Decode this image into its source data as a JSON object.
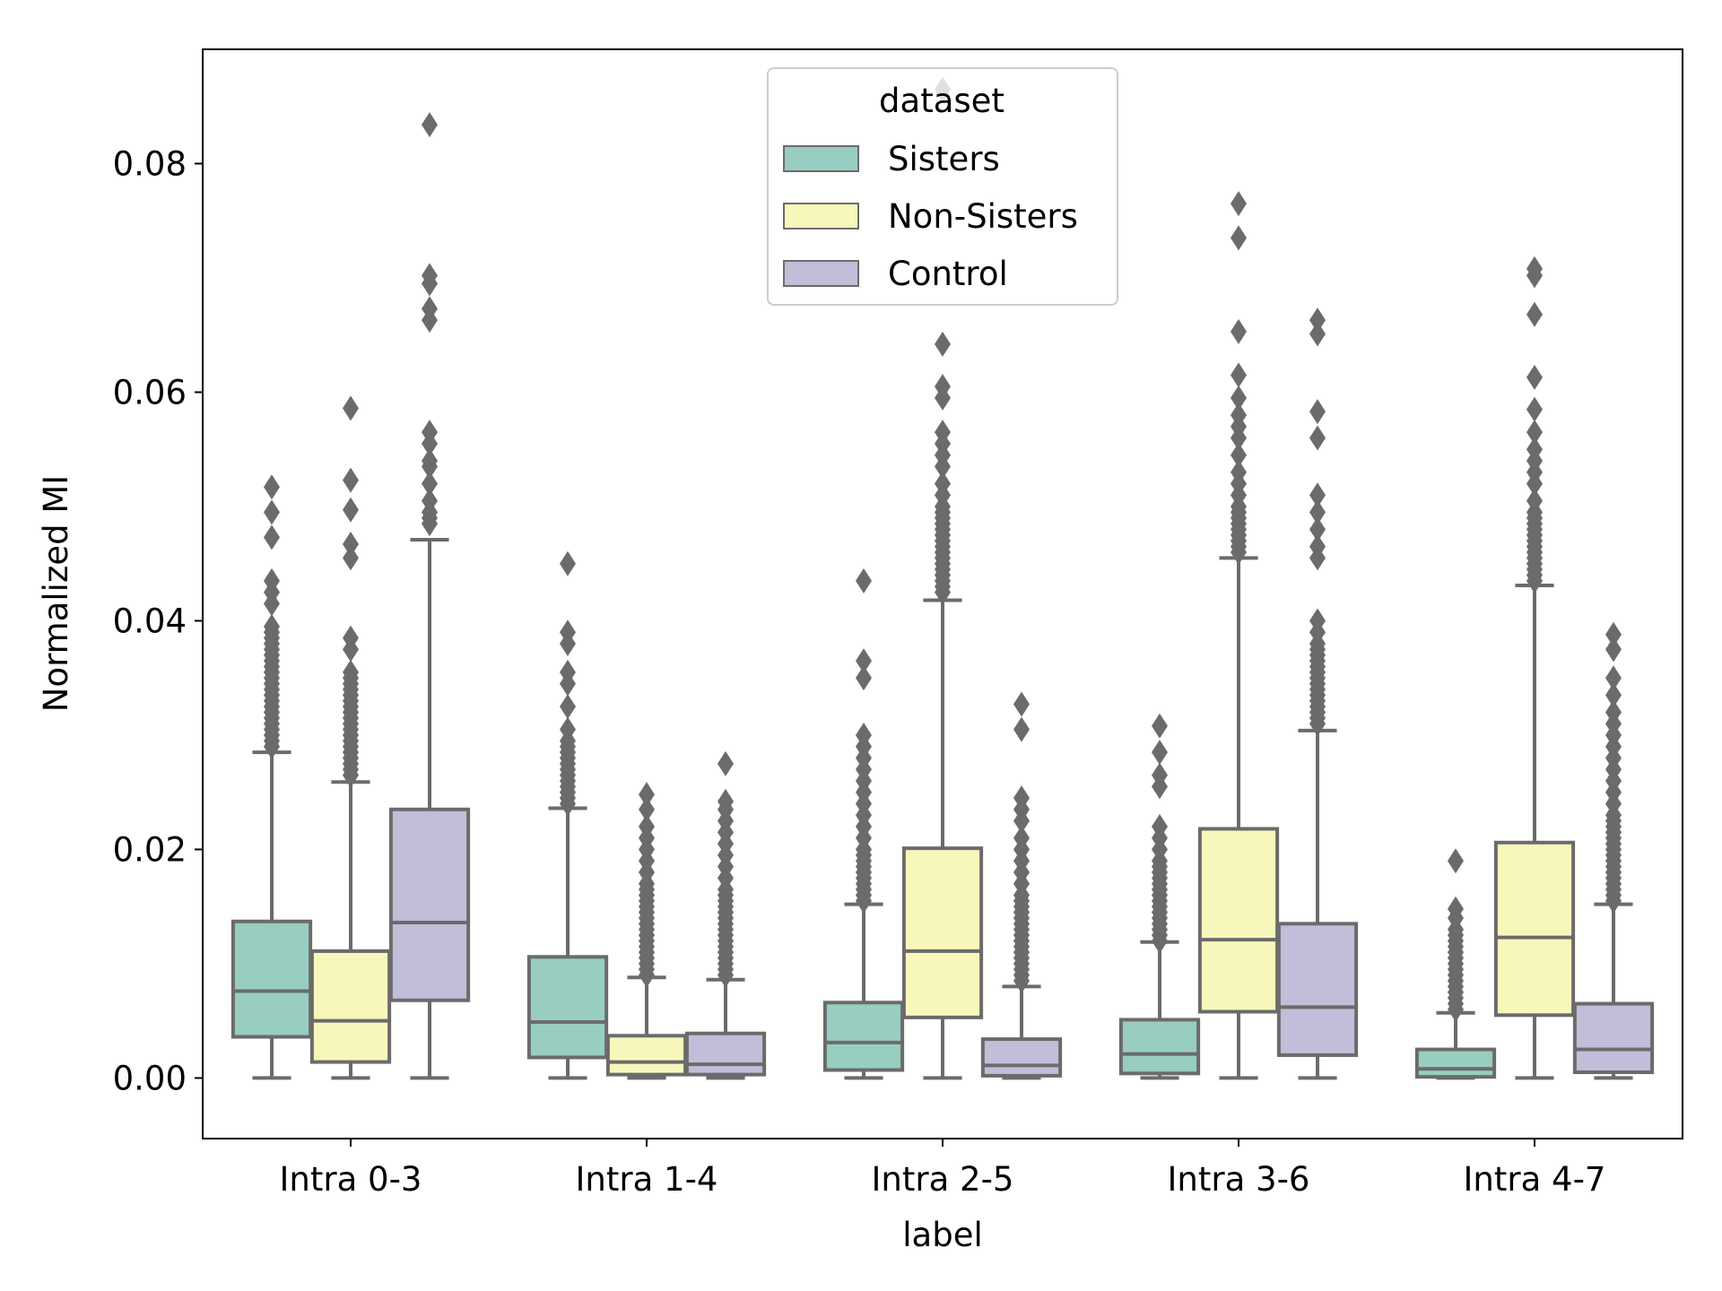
{
  "chart_data": {
    "type": "box",
    "xlabel": "label",
    "ylabel": "Normalized MI",
    "ylim": [
      -0.0053,
      0.09
    ],
    "yticks": [
      "0.00",
      "0.02",
      "0.04",
      "0.06",
      "0.08"
    ],
    "ytick_values": [
      0,
      0.02,
      0.04,
      0.06,
      0.08
    ],
    "categories": [
      "Intra 0-3",
      "Intra 1-4",
      "Intra 2-5",
      "Intra 3-6",
      "Intra 4-7"
    ],
    "grid": false,
    "legend": {
      "title": "dataset",
      "placement": "top-center"
    },
    "series": [
      {
        "name": "Sisters",
        "color": "#98cdc2",
        "boxes": [
          {
            "min": 0,
            "q1": 0.0036,
            "median": 0.0076,
            "q3": 0.0137,
            "max": 0.0285,
            "outliers": [
              0.029,
              0.0295,
              0.03,
              0.0305,
              0.031,
              0.0315,
              0.032,
              0.0325,
              0.033,
              0.0335,
              0.034,
              0.0345,
              0.035,
              0.0355,
              0.036,
              0.0365,
              0.037,
              0.0375,
              0.038,
              0.0385,
              0.039,
              0.0395,
              0.0415,
              0.0425,
              0.0435,
              0.0473,
              0.0495,
              0.0517
            ]
          },
          {
            "min": 0,
            "q1": 0.0018,
            "median": 0.0049,
            "q3": 0.0106,
            "max": 0.0236,
            "outliers": [
              0.024,
              0.0245,
              0.025,
              0.0255,
              0.026,
              0.0265,
              0.027,
              0.0275,
              0.028,
              0.0285,
              0.029,
              0.0295,
              0.0305,
              0.0325,
              0.0345,
              0.0355,
              0.038,
              0.039,
              0.045
            ]
          },
          {
            "min": 0,
            "q1": 0.0007,
            "median": 0.0031,
            "q3": 0.0066,
            "max": 0.0152,
            "outliers": [
              0.0155,
              0.016,
              0.0165,
              0.017,
              0.0175,
              0.018,
              0.0185,
              0.019,
              0.0195,
              0.02,
              0.021,
              0.022,
              0.023,
              0.024,
              0.025,
              0.026,
              0.027,
              0.028,
              0.029,
              0.03,
              0.035,
              0.0365,
              0.0435
            ]
          },
          {
            "min": 0,
            "q1": 0.0004,
            "median": 0.0021,
            "q3": 0.0051,
            "max": 0.0119,
            "outliers": [
              0.012,
              0.0125,
              0.013,
              0.0135,
              0.014,
              0.0145,
              0.015,
              0.0155,
              0.016,
              0.0165,
              0.017,
              0.0175,
              0.018,
              0.0185,
              0.019,
              0.02,
              0.021,
              0.022,
              0.0255,
              0.0265,
              0.0285,
              0.0308
            ]
          },
          {
            "min": 0,
            "q1": 0.0001,
            "median": 0.0008,
            "q3": 0.0025,
            "max": 0.0057,
            "outliers": [
              0.006,
              0.0065,
              0.007,
              0.0075,
              0.008,
              0.0085,
              0.009,
              0.0095,
              0.01,
              0.0105,
              0.011,
              0.0115,
              0.012,
              0.0125,
              0.013,
              0.014,
              0.0148,
              0.019
            ]
          }
        ]
      },
      {
        "name": "Non-Sisters",
        "color": "#f7f7bb",
        "boxes": [
          {
            "min": 0,
            "q1": 0.0014,
            "median": 0.005,
            "q3": 0.0111,
            "max": 0.0259,
            "outliers": [
              0.0265,
              0.027,
              0.0275,
              0.028,
              0.0285,
              0.029,
              0.0295,
              0.03,
              0.0305,
              0.031,
              0.0315,
              0.032,
              0.0325,
              0.033,
              0.0335,
              0.034,
              0.0345,
              0.035,
              0.0355,
              0.0375,
              0.0385,
              0.0455,
              0.0467,
              0.0497,
              0.0523,
              0.0586
            ]
          },
          {
            "min": 0,
            "q1": 0.0003,
            "median": 0.0014,
            "q3": 0.0037,
            "max": 0.0088,
            "outliers": [
              0.009,
              0.0095,
              0.01,
              0.0105,
              0.011,
              0.0115,
              0.012,
              0.0125,
              0.013,
              0.0135,
              0.014,
              0.0145,
              0.015,
              0.0155,
              0.016,
              0.0165,
              0.017,
              0.018,
              0.019,
              0.02,
              0.021,
              0.022,
              0.0235,
              0.0248
            ]
          },
          {
            "min": 0,
            "q1": 0.0053,
            "median": 0.0111,
            "q3": 0.0201,
            "max": 0.0418,
            "outliers": [
              0.0425,
              0.043,
              0.0435,
              0.044,
              0.0445,
              0.045,
              0.0455,
              0.046,
              0.0465,
              0.047,
              0.0475,
              0.048,
              0.0485,
              0.049,
              0.0495,
              0.05,
              0.051,
              0.052,
              0.0535,
              0.0545,
              0.0555,
              0.0565,
              0.0595,
              0.0605,
              0.0642,
              0.0865
            ]
          },
          {
            "min": 0,
            "q1": 0.0058,
            "median": 0.0121,
            "q3": 0.0218,
            "max": 0.0455,
            "outliers": [
              0.046,
              0.0465,
              0.047,
              0.0475,
              0.048,
              0.0485,
              0.049,
              0.0495,
              0.05,
              0.051,
              0.052,
              0.053,
              0.0545,
              0.056,
              0.057,
              0.058,
              0.0595,
              0.0615,
              0.0653,
              0.0735,
              0.0765
            ]
          },
          {
            "min": 0,
            "q1": 0.0055,
            "median": 0.0123,
            "q3": 0.0206,
            "max": 0.0431,
            "outliers": [
              0.0435,
              0.044,
              0.0445,
              0.045,
              0.0455,
              0.046,
              0.0465,
              0.047,
              0.0475,
              0.048,
              0.0485,
              0.049,
              0.0495,
              0.0505,
              0.052,
              0.053,
              0.054,
              0.055,
              0.0565,
              0.0585,
              0.0613,
              0.0668,
              0.0702,
              0.0708
            ]
          }
        ]
      },
      {
        "name": "Control",
        "color": "#c1bed9",
        "boxes": [
          {
            "min": 0,
            "q1": 0.0068,
            "median": 0.0136,
            "q3": 0.0235,
            "max": 0.0471,
            "outliers": [
              0.0485,
              0.049,
              0.0495,
              0.0505,
              0.052,
              0.0535,
              0.054,
              0.0555,
              0.0565,
              0.0663,
              0.0673,
              0.0695,
              0.0702,
              0.0834
            ]
          },
          {
            "min": 0,
            "q1": 0.0003,
            "median": 0.0012,
            "q3": 0.0039,
            "max": 0.0086,
            "outliers": [
              0.009,
              0.0095,
              0.01,
              0.0105,
              0.011,
              0.0115,
              0.012,
              0.0125,
              0.013,
              0.0135,
              0.014,
              0.0145,
              0.015,
              0.0155,
              0.016,
              0.0165,
              0.0175,
              0.0185,
              0.0195,
              0.0205,
              0.0215,
              0.0225,
              0.0235,
              0.0242,
              0.0275
            ]
          },
          {
            "min": 0,
            "q1": 0.0002,
            "median": 0.0011,
            "q3": 0.0034,
            "max": 0.008,
            "outliers": [
              0.0085,
              0.009,
              0.0095,
              0.01,
              0.0105,
              0.011,
              0.0115,
              0.012,
              0.0125,
              0.013,
              0.0135,
              0.014,
              0.0145,
              0.015,
              0.0155,
              0.016,
              0.017,
              0.018,
              0.019,
              0.02,
              0.021,
              0.0225,
              0.0235,
              0.0245,
              0.0305,
              0.0327
            ]
          },
          {
            "min": 0,
            "q1": 0.002,
            "median": 0.0062,
            "q3": 0.0135,
            "max": 0.0304,
            "outliers": [
              0.031,
              0.0315,
              0.032,
              0.0325,
              0.033,
              0.0335,
              0.034,
              0.0345,
              0.035,
              0.0355,
              0.036,
              0.0365,
              0.037,
              0.0375,
              0.038,
              0.039,
              0.04,
              0.0455,
              0.0465,
              0.048,
              0.0495,
              0.051,
              0.056,
              0.0583,
              0.0651,
              0.0663
            ]
          },
          {
            "min": 0,
            "q1": 0.0005,
            "median": 0.0025,
            "q3": 0.0065,
            "max": 0.0152,
            "outliers": [
              0.0155,
              0.016,
              0.0165,
              0.017,
              0.0175,
              0.018,
              0.0185,
              0.019,
              0.0195,
              0.02,
              0.0205,
              0.021,
              0.0215,
              0.022,
              0.0225,
              0.023,
              0.024,
              0.025,
              0.026,
              0.027,
              0.028,
              0.029,
              0.03,
              0.031,
              0.032,
              0.0335,
              0.035,
              0.0375,
              0.0388
            ]
          }
        ]
      }
    ]
  }
}
